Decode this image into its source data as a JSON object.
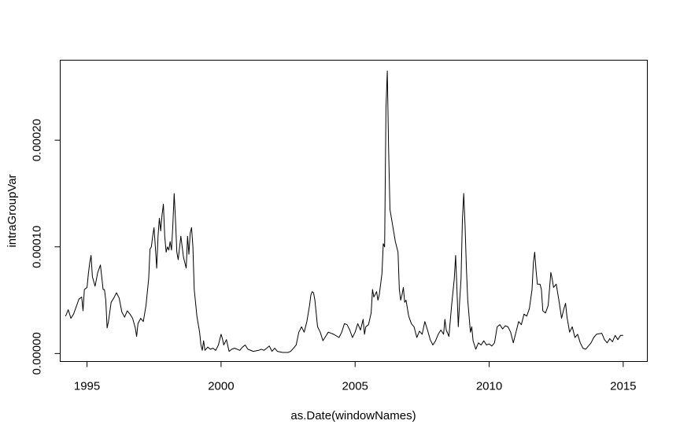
{
  "chart_data": {
    "type": "line",
    "title": "",
    "xlabel": "as.Date(windowNames)",
    "ylabel": "intraGroupVar",
    "x_ticks": [
      "1995",
      "2000",
      "2005",
      "2010",
      "2015"
    ],
    "y_ticks": [
      "0.00000",
      "0.00010",
      "0.00020"
    ],
    "xlim": [
      1994.0,
      2015.9
    ],
    "ylim": [
      -7.5e-06,
      0.000275
    ],
    "grid": false,
    "legend": "none",
    "line_color": "#000000",
    "series": [
      {
        "points": [
          [
            1994.2,
            3.5e-05
          ],
          [
            1994.3,
            4.1e-05
          ],
          [
            1994.4,
            3.3e-05
          ],
          [
            1994.5,
            3.7e-05
          ],
          [
            1994.6,
            4.4e-05
          ],
          [
            1994.7,
            5.1e-05
          ],
          [
            1994.8,
            5.3e-05
          ],
          [
            1994.85,
            4e-05
          ],
          [
            1994.9,
            6e-05
          ],
          [
            1995.0,
            6.2e-05
          ],
          [
            1995.05,
            7.5e-05
          ],
          [
            1995.1,
            8.5e-05
          ],
          [
            1995.15,
            9.2e-05
          ],
          [
            1995.2,
            7.2e-05
          ],
          [
            1995.3,
            6.3e-05
          ],
          [
            1995.4,
            7.6e-05
          ],
          [
            1995.5,
            8.3e-05
          ],
          [
            1995.6,
            6e-05
          ],
          [
            1995.65,
            6e-05
          ],
          [
            1995.7,
            5e-05
          ],
          [
            1995.75,
            2.4e-05
          ],
          [
            1995.8,
            3e-05
          ],
          [
            1995.9,
            4.8e-05
          ],
          [
            1996.0,
            5.2e-05
          ],
          [
            1996.1,
            5.7e-05
          ],
          [
            1996.2,
            5.2e-05
          ],
          [
            1996.3,
            3.9e-05
          ],
          [
            1996.4,
            3.4e-05
          ],
          [
            1996.5,
            4e-05
          ],
          [
            1996.6,
            3.7e-05
          ],
          [
            1996.7,
            3.3e-05
          ],
          [
            1996.8,
            2.4e-05
          ],
          [
            1996.85,
            1.6e-05
          ],
          [
            1996.9,
            2.8e-05
          ],
          [
            1997.0,
            3.3e-05
          ],
          [
            1997.1,
            3e-05
          ],
          [
            1997.2,
            4.5e-05
          ],
          [
            1997.3,
            7e-05
          ],
          [
            1997.35,
            9.8e-05
          ],
          [
            1997.4,
            0.0001
          ],
          [
            1997.45,
            0.00011
          ],
          [
            1997.5,
            0.000118
          ],
          [
            1997.55,
            0.0001
          ],
          [
            1997.6,
            8e-05
          ],
          [
            1997.65,
            0.00011
          ],
          [
            1997.7,
            0.000127
          ],
          [
            1997.75,
            0.000115
          ],
          [
            1997.8,
            0.00013
          ],
          [
            1997.85,
            0.00014
          ],
          [
            1997.9,
            0.00011
          ],
          [
            1997.95,
            9.5e-05
          ],
          [
            1998.0,
            0.0001
          ],
          [
            1998.05,
            9.7e-05
          ],
          [
            1998.1,
            0.000105
          ],
          [
            1998.15,
            9.7e-05
          ],
          [
            1998.2,
            0.00012
          ],
          [
            1998.25,
            0.00015
          ],
          [
            1998.3,
            0.000125
          ],
          [
            1998.35,
            9.5e-05
          ],
          [
            1998.4,
            8.8e-05
          ],
          [
            1998.5,
            0.00011
          ],
          [
            1998.55,
            0.0001
          ],
          [
            1998.6,
            9e-05
          ],
          [
            1998.7,
            8e-05
          ],
          [
            1998.75,
            0.00011
          ],
          [
            1998.8,
            9.3e-05
          ],
          [
            1998.85,
            0.000113
          ],
          [
            1998.9,
            0.000118
          ],
          [
            1998.95,
            0.0001
          ],
          [
            1999.0,
            6e-05
          ],
          [
            1999.1,
            3.5e-05
          ],
          [
            1999.2,
            2e-05
          ],
          [
            1999.25,
            8e-06
          ],
          [
            1999.3,
            3e-06
          ],
          [
            1999.35,
            1.2e-05
          ],
          [
            1999.4,
            3e-06
          ],
          [
            1999.5,
            6e-06
          ],
          [
            1999.6,
            4e-06
          ],
          [
            1999.7,
            5e-06
          ],
          [
            1999.8,
            3e-06
          ],
          [
            1999.9,
            8e-06
          ],
          [
            2000.0,
            1.8e-05
          ],
          [
            2000.05,
            1.4e-05
          ],
          [
            2000.1,
            8e-06
          ],
          [
            2000.2,
            1.3e-05
          ],
          [
            2000.3,
            2e-06
          ],
          [
            2000.4,
            4e-06
          ],
          [
            2000.5,
            5e-06
          ],
          [
            2000.6,
            4e-06
          ],
          [
            2000.7,
            3e-06
          ],
          [
            2000.8,
            6e-06
          ],
          [
            2000.9,
            8e-06
          ],
          [
            2001.0,
            4e-06
          ],
          [
            2001.2,
            2e-06
          ],
          [
            2001.4,
            3e-06
          ],
          [
            2001.5,
            4e-06
          ],
          [
            2001.6,
            3e-06
          ],
          [
            2001.7,
            5e-06
          ],
          [
            2001.8,
            7e-06
          ],
          [
            2001.9,
            2e-06
          ],
          [
            2002.0,
            5e-06
          ],
          [
            2002.1,
            2e-06
          ],
          [
            2002.3,
            1e-06
          ],
          [
            2002.5,
            1e-06
          ],
          [
            2002.6,
            2e-06
          ],
          [
            2002.7,
            5e-06
          ],
          [
            2002.8,
            8e-06
          ],
          [
            2002.9,
            2e-05
          ],
          [
            2003.0,
            2.5e-05
          ],
          [
            2003.1,
            2e-05
          ],
          [
            2003.2,
            3e-05
          ],
          [
            2003.3,
            4.5e-05
          ],
          [
            2003.35,
            5.5e-05
          ],
          [
            2003.4,
            5.8e-05
          ],
          [
            2003.45,
            5.7e-05
          ],
          [
            2003.5,
            5e-05
          ],
          [
            2003.6,
            2.5e-05
          ],
          [
            2003.7,
            2e-05
          ],
          [
            2003.8,
            1.2e-05
          ],
          [
            2003.9,
            1.6e-05
          ],
          [
            2004.0,
            2e-05
          ],
          [
            2004.2,
            1.8e-05
          ],
          [
            2004.4,
            1.5e-05
          ],
          [
            2004.5,
            2e-05
          ],
          [
            2004.6,
            2.8e-05
          ],
          [
            2004.7,
            2.7e-05
          ],
          [
            2004.8,
            2.2e-05
          ],
          [
            2004.9,
            1.5e-05
          ],
          [
            2005.0,
            2e-05
          ],
          [
            2005.1,
            2.8e-05
          ],
          [
            2005.2,
            2.2e-05
          ],
          [
            2005.3,
            3.2e-05
          ],
          [
            2005.35,
            1.8e-05
          ],
          [
            2005.4,
            2.5e-05
          ],
          [
            2005.5,
            2.7e-05
          ],
          [
            2005.6,
            3.8e-05
          ],
          [
            2005.65,
            6e-05
          ],
          [
            2005.7,
            5.3e-05
          ],
          [
            2005.8,
            5.8e-05
          ],
          [
            2005.85,
            5e-05
          ],
          [
            2005.9,
            5.5e-05
          ],
          [
            2006.0,
            7.5e-05
          ],
          [
            2006.05,
            0.000103
          ],
          [
            2006.1,
            0.0001
          ],
          [
            2006.15,
            0.00023
          ],
          [
            2006.2,
            0.000265
          ],
          [
            2006.25,
            0.00019
          ],
          [
            2006.3,
            0.000135
          ],
          [
            2006.4,
            0.00012
          ],
          [
            2006.5,
            0.000105
          ],
          [
            2006.6,
            9.5e-05
          ],
          [
            2006.65,
            6e-05
          ],
          [
            2006.7,
            5e-05
          ],
          [
            2006.75,
            5.5e-05
          ],
          [
            2006.8,
            6.2e-05
          ],
          [
            2006.85,
            4.8e-05
          ],
          [
            2006.9,
            5e-05
          ],
          [
            2007.0,
            3.5e-05
          ],
          [
            2007.1,
            2.8e-05
          ],
          [
            2007.2,
            2.5e-05
          ],
          [
            2007.3,
            1.5e-05
          ],
          [
            2007.4,
            2.1e-05
          ],
          [
            2007.5,
            1.8e-05
          ],
          [
            2007.6,
            3e-05
          ],
          [
            2007.7,
            2.2e-05
          ],
          [
            2007.8,
            1.3e-05
          ],
          [
            2007.9,
            8e-06
          ],
          [
            2008.0,
            1.2e-05
          ],
          [
            2008.1,
            1.8e-05
          ],
          [
            2008.2,
            2.2e-05
          ],
          [
            2008.3,
            1.8e-05
          ],
          [
            2008.35,
            3.2e-05
          ],
          [
            2008.4,
            2.2e-05
          ],
          [
            2008.5,
            1.6e-05
          ],
          [
            2008.6,
            4.5e-05
          ],
          [
            2008.7,
            7e-05
          ],
          [
            2008.75,
            9.2e-05
          ],
          [
            2008.8,
            6e-05
          ],
          [
            2008.85,
            2.5e-05
          ],
          [
            2008.9,
            5e-05
          ],
          [
            2008.95,
            7e-05
          ],
          [
            2009.0,
            0.000125
          ],
          [
            2009.05,
            0.00015
          ],
          [
            2009.1,
            0.00012
          ],
          [
            2009.15,
            8e-05
          ],
          [
            2009.2,
            5e-05
          ],
          [
            2009.3,
            2e-05
          ],
          [
            2009.35,
            2.5e-05
          ],
          [
            2009.4,
            1.2e-05
          ],
          [
            2009.5,
            4e-06
          ],
          [
            2009.6,
            1e-05
          ],
          [
            2009.7,
            8e-06
          ],
          [
            2009.8,
            1.2e-05
          ],
          [
            2009.9,
            8e-06
          ],
          [
            2010.0,
            9e-06
          ],
          [
            2010.1,
            7e-06
          ],
          [
            2010.2,
            1e-05
          ],
          [
            2010.3,
            2.5e-05
          ],
          [
            2010.4,
            2.7e-05
          ],
          [
            2010.5,
            2.3e-05
          ],
          [
            2010.6,
            2.6e-05
          ],
          [
            2010.7,
            2.5e-05
          ],
          [
            2010.8,
            2e-05
          ],
          [
            2010.9,
            1e-05
          ],
          [
            2011.0,
            2e-05
          ],
          [
            2011.1,
            3e-05
          ],
          [
            2011.2,
            2.7e-05
          ],
          [
            2011.3,
            3.7e-05
          ],
          [
            2011.4,
            3.5e-05
          ],
          [
            2011.5,
            4.2e-05
          ],
          [
            2011.6,
            6e-05
          ],
          [
            2011.65,
            8.5e-05
          ],
          [
            2011.7,
            9.5e-05
          ],
          [
            2011.75,
            7.8e-05
          ],
          [
            2011.8,
            6.5e-05
          ],
          [
            2011.9,
            6.5e-05
          ],
          [
            2011.95,
            6e-05
          ],
          [
            2012.0,
            4e-05
          ],
          [
            2012.1,
            3.8e-05
          ],
          [
            2012.2,
            4.5e-05
          ],
          [
            2012.3,
            7.6e-05
          ],
          [
            2012.35,
            7e-05
          ],
          [
            2012.4,
            6.2e-05
          ],
          [
            2012.5,
            6.5e-05
          ],
          [
            2012.6,
            5e-05
          ],
          [
            2012.7,
            3.3e-05
          ],
          [
            2012.8,
            4.3e-05
          ],
          [
            2012.85,
            4.7e-05
          ],
          [
            2012.9,
            3.5e-05
          ],
          [
            2013.0,
            2e-05
          ],
          [
            2013.1,
            2.5e-05
          ],
          [
            2013.2,
            1.5e-05
          ],
          [
            2013.3,
            1.8e-05
          ],
          [
            2013.4,
            1e-05
          ],
          [
            2013.5,
            5e-06
          ],
          [
            2013.6,
            4e-06
          ],
          [
            2013.7,
            7e-06
          ],
          [
            2013.8,
            1e-05
          ],
          [
            2013.9,
            1.5e-05
          ],
          [
            2014.0,
            1.8e-05
          ],
          [
            2014.2,
            1.9e-05
          ],
          [
            2014.3,
            1.3e-05
          ],
          [
            2014.4,
            1e-05
          ],
          [
            2014.5,
            1.4e-05
          ],
          [
            2014.6,
            1.1e-05
          ],
          [
            2014.7,
            1.7e-05
          ],
          [
            2014.8,
            1.3e-05
          ],
          [
            2014.9,
            1.7e-05
          ],
          [
            2015.0,
            1.7e-05
          ]
        ]
      }
    ]
  }
}
